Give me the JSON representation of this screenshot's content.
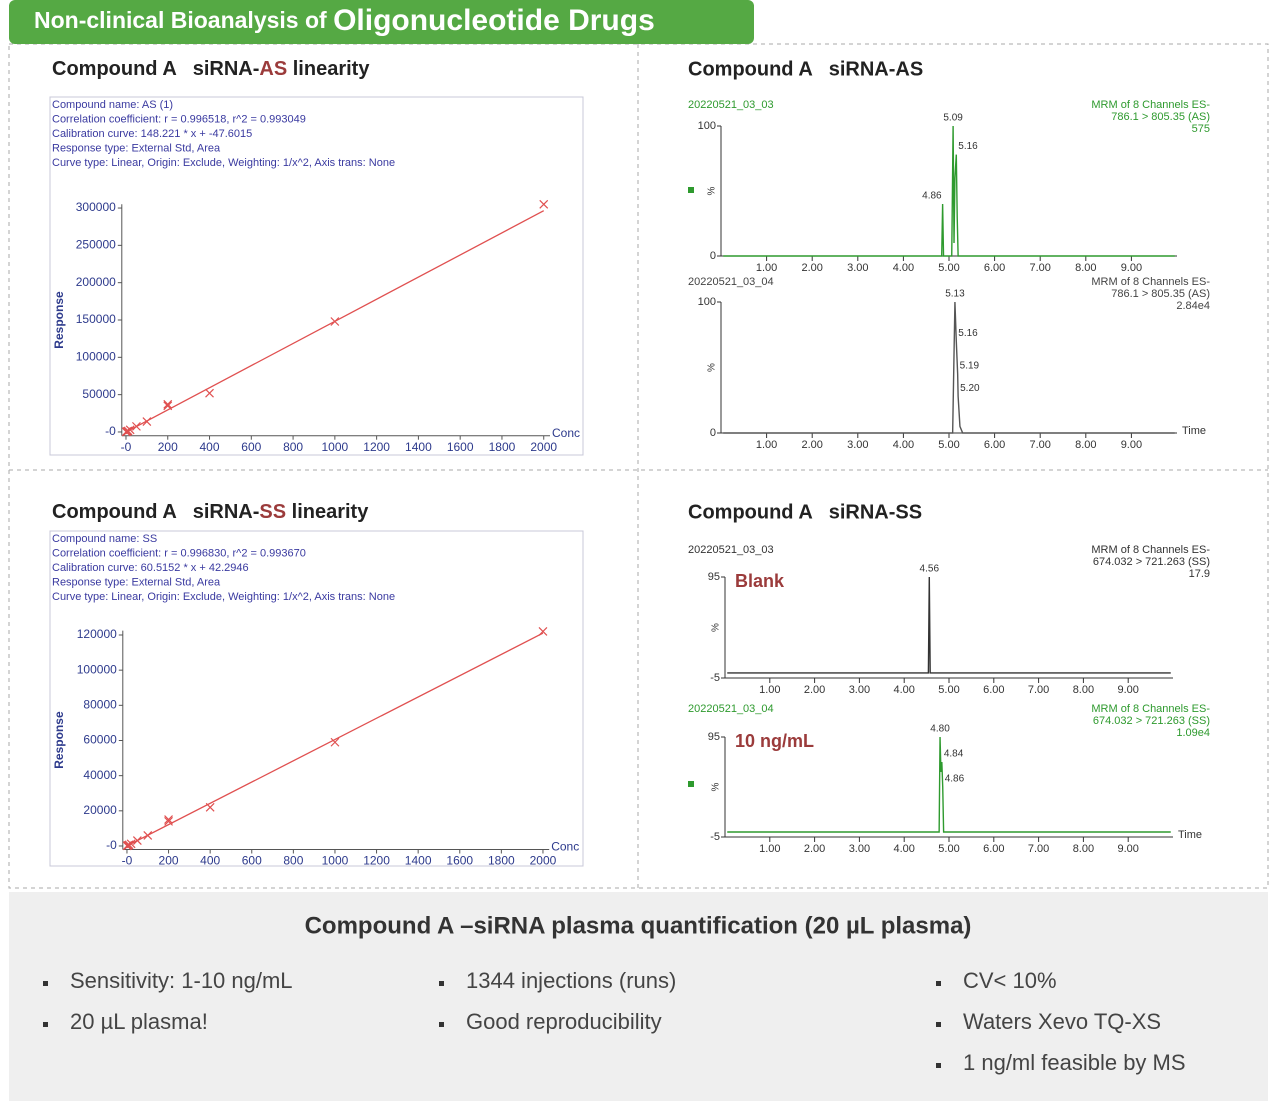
{
  "header": {
    "title_parts": [
      "Non-clinical Bioanalysis of ",
      "Oligonucleotide Drugs"
    ],
    "color": "#55a944"
  },
  "chart_data": [
    {
      "type": "scatter",
      "title_parts": [
        "Compound A   siRNA-",
        "AS",
        " linearity"
      ],
      "highlight_color": "#9b3b3b",
      "info": [
        "Compound name: AS (1)",
        "Correlation coefficient: r = 0.996518, r^2 = 0.993049",
        "Calibration curve: 148.221 * x + -47.6015",
        "Response type: External Std, Area",
        "Curve type: Linear, Origin: Exclude, Weighting: 1/x^2, Axis trans: None"
      ],
      "x_label": "Conc",
      "y_label": "Response",
      "x": [
        1,
        2,
        5,
        10,
        20,
        50,
        100,
        200,
        200,
        400,
        1000,
        2000
      ],
      "values": [
        150,
        300,
        700,
        1400,
        2900,
        7500,
        14000,
        35000,
        37000,
        52000,
        148000,
        305000
      ],
      "color": "#e05050",
      "fit": {
        "x": [
          0,
          2000
        ],
        "values": [
          -48,
          296394
        ]
      },
      "xlim": [
        -20,
        2030
      ],
      "ylim": [
        -5000,
        305000
      ],
      "xticks": [
        {
          "value": 0,
          "label": "-0"
        },
        200,
        400,
        600,
        800,
        1000,
        1200,
        1400,
        1600,
        1800,
        2000
      ],
      "yticks": [
        {
          "value": 0,
          "label": "-0"
        },
        50000,
        100000,
        150000,
        200000,
        250000,
        300000
      ]
    },
    {
      "type": "trace",
      "title": "Compound A   siRNA-AS",
      "sample": "20220521_03_03",
      "header": [
        "MRM of 8 Channels ES-",
        "786.1 > 805.35 (AS)",
        "575"
      ],
      "text_color": "#2e9a2e",
      "color": "#2e9a2e",
      "y_label": "%",
      "x": [
        0.05,
        4.84,
        4.86,
        4.88,
        5.06,
        5.09,
        5.11,
        5.13,
        5.16,
        5.18,
        5.2,
        9.95
      ],
      "values": [
        0,
        0,
        40,
        0,
        0,
        100,
        10,
        60,
        78,
        30,
        0,
        0
      ],
      "peaks": [
        {
          "x": 5.09,
          "y": 100,
          "label": "5.09"
        },
        {
          "x": 5.16,
          "y": 78,
          "label": "5.16"
        },
        {
          "x": 4.86,
          "y": 40,
          "label": "4.86"
        }
      ],
      "xlim": [
        0,
        10
      ],
      "ylim": [
        0,
        100
      ],
      "xticks": [
        {
          "value": 1,
          "label": "1.00"
        },
        {
          "value": 2,
          "label": "2.00"
        },
        {
          "value": 3,
          "label": "3.00"
        },
        {
          "value": 4,
          "label": "4.00"
        },
        {
          "value": 5,
          "label": "5.00"
        },
        {
          "value": 6,
          "label": "6.00"
        },
        {
          "value": 7,
          "label": "7.00"
        },
        {
          "value": 8,
          "label": "8.00"
        },
        {
          "value": 9,
          "label": "9.00"
        }
      ],
      "yticks": [
        0,
        100
      ]
    },
    {
      "type": "trace",
      "sample": "20220521_03_04",
      "header": [
        "MRM of 8 Channels ES-",
        "786.1 > 805.35 (AS)",
        "2.84e4"
      ],
      "text_color": "#444444",
      "color": "#555555",
      "y_label": "%",
      "x_label": "Time",
      "x": [
        0.05,
        5.08,
        5.13,
        5.16,
        5.19,
        5.2,
        5.24,
        5.3,
        9.95
      ],
      "values": [
        0,
        0,
        100,
        70,
        45,
        28,
        5,
        0,
        0
      ],
      "peaks": [
        {
          "x": 5.13,
          "y": 100,
          "label": "5.13"
        },
        {
          "x": 5.16,
          "y": 70,
          "label": "5.16"
        },
        {
          "x": 5.19,
          "y": 45,
          "label": "5.19"
        },
        {
          "x": 5.2,
          "y": 28,
          "label": "5.20"
        }
      ],
      "xlim": [
        0,
        10
      ],
      "ylim": [
        0,
        100
      ],
      "xticks": [
        {
          "value": 1,
          "label": "1.00"
        },
        {
          "value": 2,
          "label": "2.00"
        },
        {
          "value": 3,
          "label": "3.00"
        },
        {
          "value": 4,
          "label": "4.00"
        },
        {
          "value": 5,
          "label": "5.00"
        },
        {
          "value": 6,
          "label": "6.00"
        },
        {
          "value": 7,
          "label": "7.00"
        },
        {
          "value": 8,
          "label": "8.00"
        },
        {
          "value": 9,
          "label": "9.00"
        }
      ],
      "yticks": [
        0,
        100
      ]
    },
    {
      "type": "scatter",
      "title_parts": [
        "Compound A   siRNA-",
        "SS",
        " linearity"
      ],
      "highlight_color": "#9b3b3b",
      "info": [
        "Compound name: SS",
        "Correlation coefficient: r = 0.996830, r^2 = 0.993670",
        "Calibration curve: 60.5152 * x + 42.2946",
        "Response type: External Std, Area",
        "Curve type: Linear, Origin: Exclude, Weighting: 1/x^2, Axis trans: None"
      ],
      "x_label": "Conc",
      "y_label": "Response",
      "x": [
        1,
        2,
        5,
        10,
        20,
        50,
        100,
        200,
        200,
        400,
        1000,
        2000
      ],
      "values": [
        100,
        160,
        350,
        650,
        1250,
        3100,
        6000,
        14000,
        15000,
        22000,
        59000,
        122000
      ],
      "color": "#e05050",
      "fit": {
        "x": [
          0,
          2000
        ],
        "values": [
          42,
          121073
        ]
      },
      "xlim": [
        -20,
        2030
      ],
      "ylim": [
        -2000,
        122500
      ],
      "xticks": [
        {
          "value": 0,
          "label": "-0"
        },
        200,
        400,
        600,
        800,
        1000,
        1200,
        1400,
        1600,
        1800,
        2000
      ],
      "yticks": [
        {
          "value": 0,
          "label": "-0"
        },
        20000,
        40000,
        60000,
        80000,
        100000,
        120000
      ]
    },
    {
      "type": "trace",
      "title": "Compound A   siRNA-SS",
      "sample": "20220521_03_03",
      "header": [
        "MRM of 8 Channels ES-",
        "674.032 > 721.263 (SS)",
        "17.9"
      ],
      "tag": "Blank",
      "tag_color": "#9b3b3b",
      "text_color": "#333333",
      "color": "#333333",
      "y_label": "%",
      "x": [
        0.05,
        4.54,
        4.56,
        4.58,
        9.95
      ],
      "values": [
        0,
        0,
        95,
        0,
        0
      ],
      "peaks": [
        {
          "x": 4.56,
          "y": 95,
          "label": "4.56"
        }
      ],
      "xlim": [
        0,
        10
      ],
      "ylim": [
        -5,
        95
      ],
      "xticks": [
        {
          "value": 1,
          "label": "1.00"
        },
        {
          "value": 2,
          "label": "2.00"
        },
        {
          "value": 3,
          "label": "3.00"
        },
        {
          "value": 4,
          "label": "4.00"
        },
        {
          "value": 5,
          "label": "5.00"
        },
        {
          "value": 6,
          "label": "6.00"
        },
        {
          "value": 7,
          "label": "7.00"
        },
        {
          "value": 8,
          "label": "8.00"
        },
        {
          "value": 9,
          "label": "9.00"
        }
      ],
      "yticks": [
        -5,
        95
      ]
    },
    {
      "type": "trace",
      "sample": "20220521_03_04",
      "header": [
        "MRM of 8 Channels ES-",
        "674.032 > 721.263 (SS)",
        "1.09e4"
      ],
      "tag": "10 ng/mL",
      "tag_color": "#9b3b3b",
      "text_color": "#2e9a2e",
      "color": "#2e9a2e",
      "y_label": "%",
      "x_label": "Time",
      "x": [
        0.05,
        4.78,
        4.8,
        4.82,
        4.84,
        4.86,
        4.88,
        9.95
      ],
      "values": [
        0,
        0,
        95,
        60,
        70,
        45,
        0,
        0
      ],
      "peaks": [
        {
          "x": 4.8,
          "y": 95,
          "label": "4.80"
        },
        {
          "x": 4.84,
          "y": 70,
          "label": "4.84"
        },
        {
          "x": 4.86,
          "y": 45,
          "label": "4.86"
        }
      ],
      "xlim": [
        0,
        10
      ],
      "ylim": [
        -5,
        95
      ],
      "xticks": [
        {
          "value": 1,
          "label": "1.00"
        },
        {
          "value": 2,
          "label": "2.00"
        },
        {
          "value": 3,
          "label": "3.00"
        },
        {
          "value": 4,
          "label": "4.00"
        },
        {
          "value": 5,
          "label": "5.00"
        },
        {
          "value": 6,
          "label": "6.00"
        },
        {
          "value": 7,
          "label": "7.00"
        },
        {
          "value": 8,
          "label": "8.00"
        },
        {
          "value": 9,
          "label": "9.00"
        }
      ],
      "yticks": [
        -5,
        95
      ]
    }
  ],
  "summary": {
    "title": "Compound A –siRNA plasma quantification (20 µL plasma)",
    "columns": [
      [
        "Sensitivity: 1-10 ng/mL",
        "20 µL plasma!"
      ],
      [
        "1344 injections (runs)",
        "Good reproducibility"
      ],
      [
        "CV< 10%",
        "Waters Xevo TQ-XS",
        "1 ng/ml feasible by MS"
      ]
    ]
  }
}
